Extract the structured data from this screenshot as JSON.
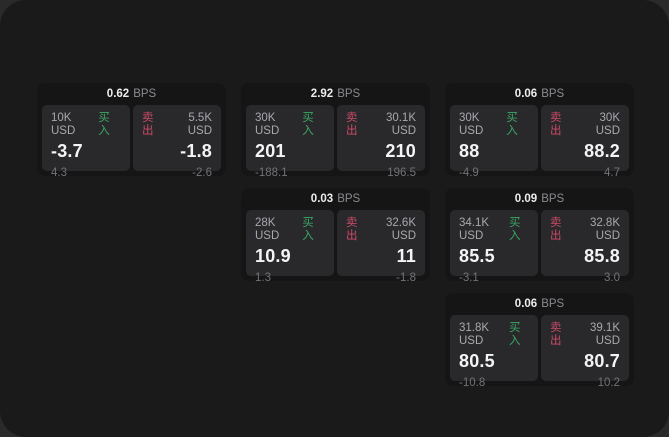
{
  "labels": {
    "bps_unit": "BPS",
    "buy": "买入",
    "sell": "卖出"
  },
  "colors": {
    "buy": "#3aa763",
    "sell": "#cc4a66",
    "window_bg": "#1a1a1b",
    "card_bg": "#151516",
    "panel_bg": "#29292c"
  },
  "cards": [
    {
      "col": 0,
      "row": 0,
      "bps": "0.62",
      "buy": {
        "amount": "10K USD",
        "value": "-3.7",
        "delta": "4.3"
      },
      "sell": {
        "amount": "5.5K USD",
        "value": "-1.8",
        "delta": "-2.6"
      }
    },
    {
      "col": 1,
      "row": 0,
      "bps": "2.92",
      "buy": {
        "amount": "30K USD",
        "value": "201",
        "delta": "-188.1"
      },
      "sell": {
        "amount": "30.1K USD",
        "value": "210",
        "delta": "196.5"
      }
    },
    {
      "col": 2,
      "row": 0,
      "bps": "0.06",
      "buy": {
        "amount": "30K USD",
        "value": "88",
        "delta": "-4.9"
      },
      "sell": {
        "amount": "30K USD",
        "value": "88.2",
        "delta": "4.7"
      }
    },
    {
      "col": 1,
      "row": 1,
      "bps": "0.03",
      "buy": {
        "amount": "28K USD",
        "value": "10.9",
        "delta": "1.3"
      },
      "sell": {
        "amount": "32.6K USD",
        "value": "11",
        "delta": "-1.8"
      }
    },
    {
      "col": 2,
      "row": 1,
      "bps": "0.09",
      "buy": {
        "amount": "34.1K USD",
        "value": "85.5",
        "delta": "-3.1"
      },
      "sell": {
        "amount": "32.8K USD",
        "value": "85.8",
        "delta": "3.0"
      }
    },
    {
      "col": 2,
      "row": 2,
      "bps": "0.06",
      "buy": {
        "amount": "31.8K USD",
        "value": "80.5",
        "delta": "-10.8"
      },
      "sell": {
        "amount": "39.1K USD",
        "value": "80.7",
        "delta": "10.2"
      }
    }
  ]
}
